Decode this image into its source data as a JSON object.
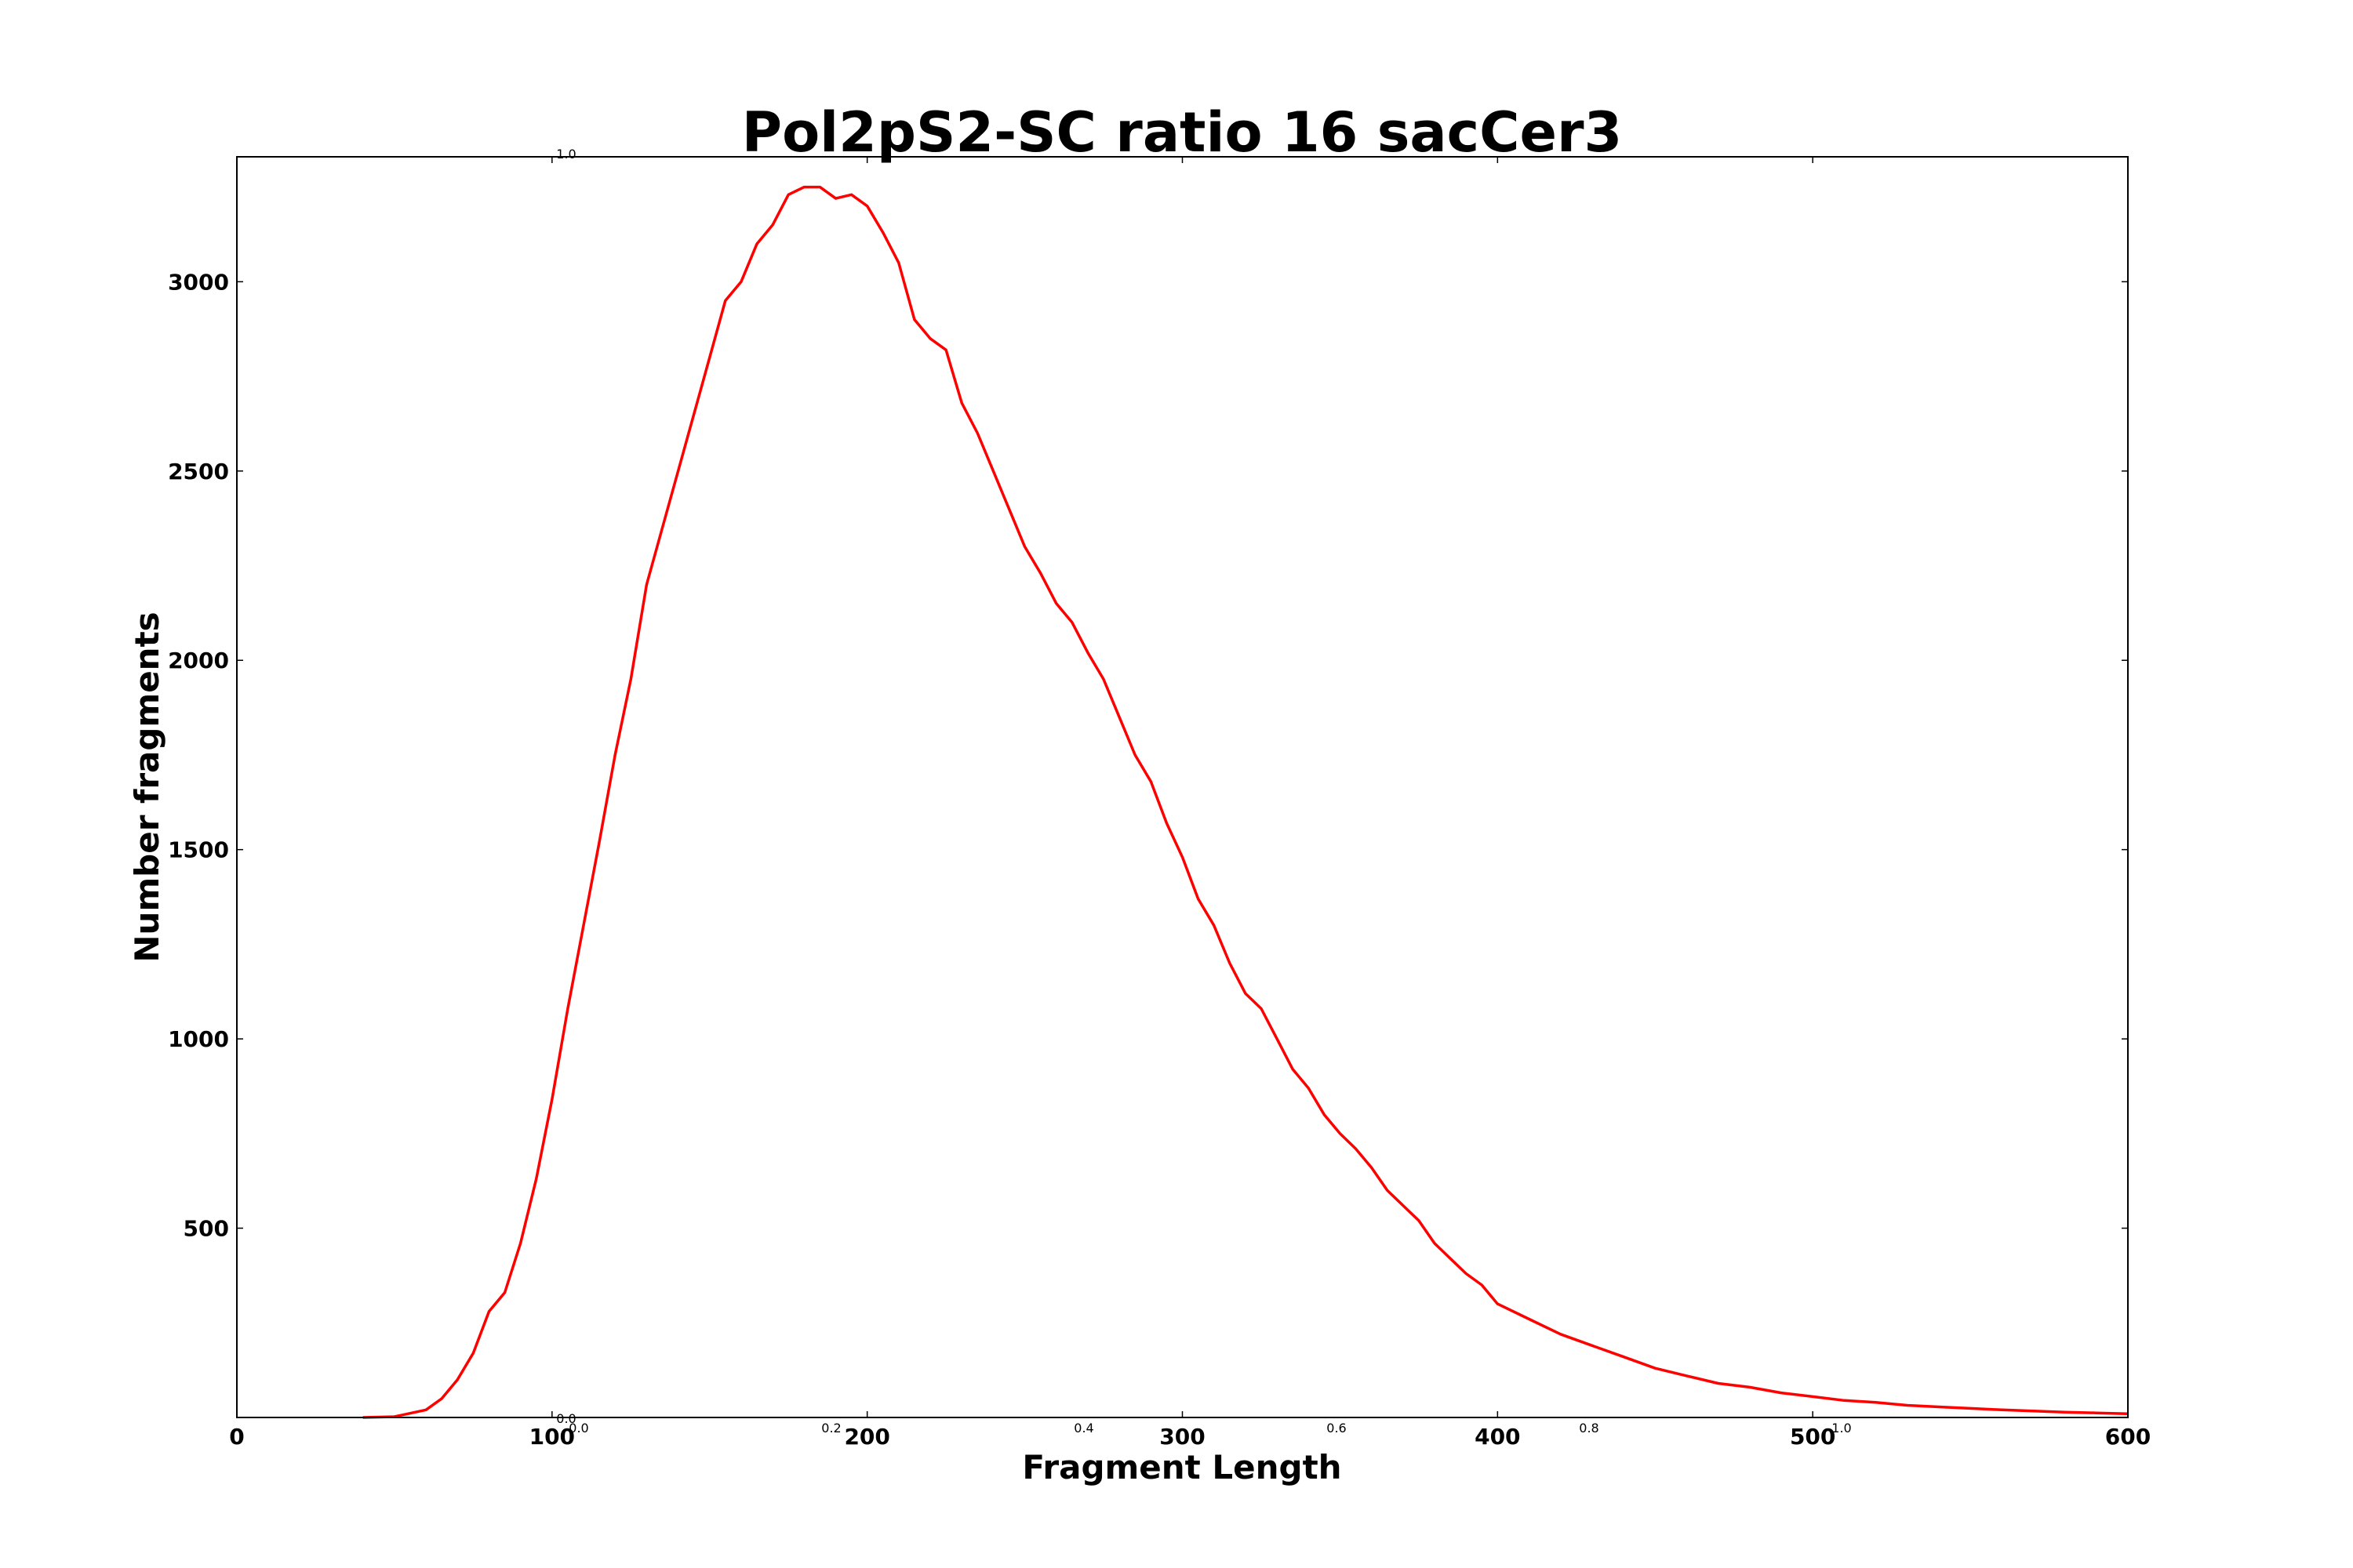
{
  "chart_data": {
    "type": "line",
    "title": "Pol2pS2-SC ratio 16 sacCer3",
    "xlabel": "Fragment Length",
    "ylabel": "Number fragments",
    "xlim": [
      0,
      600
    ],
    "ylim": [
      0,
      3330
    ],
    "xticks": [
      "0",
      "100",
      "200",
      "300",
      "400",
      "500",
      "600"
    ],
    "yticks": [
      "500",
      "1000",
      "1500",
      "2000",
      "2500",
      "3000"
    ],
    "grid": false,
    "line_color": "#ff0000",
    "overlay_axis": {
      "xticks": [
        "0.0",
        "0.2",
        "0.4",
        "0.6",
        "0.8",
        "1.0"
      ],
      "ytick_bottom": "0.0",
      "ytick_top": "1.0"
    },
    "series": [
      {
        "x": [
          40,
          50,
          60,
          65,
          70,
          75,
          80,
          85,
          90,
          95,
          100,
          105,
          110,
          115,
          120,
          125,
          130,
          135,
          140,
          145,
          150,
          155,
          160,
          165,
          170,
          175,
          180,
          185,
          190,
          195,
          200,
          205,
          210,
          215,
          220,
          225,
          230,
          235,
          240,
          245,
          250,
          255,
          260,
          265,
          270,
          275,
          280,
          285,
          290,
          295,
          300,
          305,
          310,
          315,
          320,
          325,
          330,
          335,
          340,
          345,
          350,
          355,
          360,
          365,
          370,
          375,
          380,
          385,
          390,
          395,
          400,
          410,
          420,
          430,
          440,
          450,
          460,
          470,
          480,
          490,
          500,
          510,
          520,
          530,
          540,
          550,
          560,
          570,
          580,
          590,
          600
        ],
        "y": [
          0,
          2,
          20,
          50,
          100,
          170,
          280,
          330,
          460,
          630,
          840,
          1080,
          1300,
          1520,
          1750,
          1950,
          2200,
          2350,
          2500,
          2650,
          2800,
          2950,
          3000,
          3100,
          3150,
          3230,
          3250,
          3250,
          3220,
          3230,
          3200,
          3130,
          3050,
          2900,
          2850,
          2820,
          2680,
          2600,
          2500,
          2400,
          2300,
          2230,
          2150,
          2100,
          2020,
          1950,
          1850,
          1750,
          1680,
          1570,
          1480,
          1370,
          1300,
          1200,
          1120,
          1080,
          1000,
          920,
          870,
          800,
          750,
          710,
          660,
          600,
          560,
          520,
          460,
          420,
          380,
          350,
          300,
          260,
          220,
          190,
          160,
          130,
          110,
          90,
          80,
          65,
          55,
          45,
          40,
          32,
          28,
          24,
          20,
          17,
          14,
          12,
          10
        ]
      }
    ]
  }
}
